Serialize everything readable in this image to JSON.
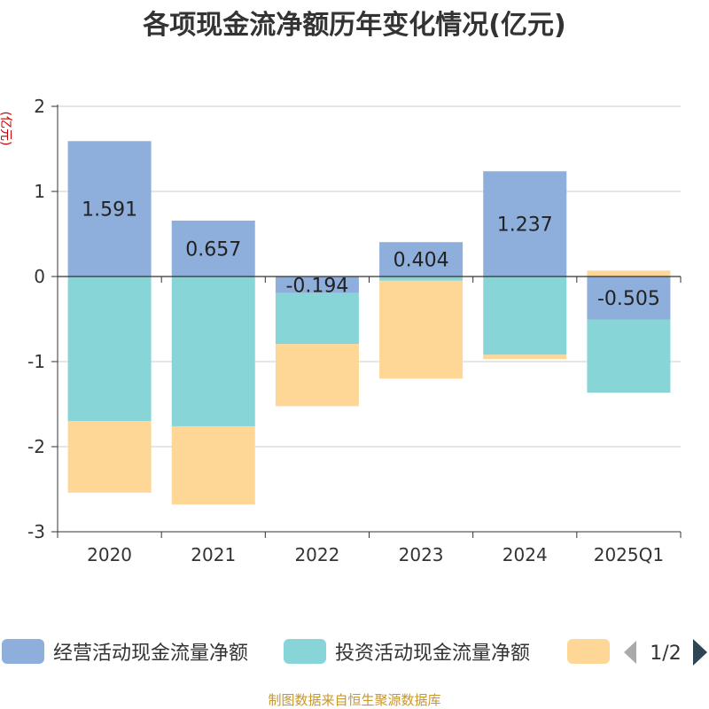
{
  "chart_data": {
    "type": "bar",
    "stacked": true,
    "title": "各项现金流净额历年变化情况(亿元)",
    "ylabel": "(亿元)",
    "categories": [
      "2020",
      "2021",
      "2022",
      "2023",
      "2024",
      "2025Q1"
    ],
    "ylim": [
      -3,
      2
    ],
    "yticks": [
      2,
      1,
      0,
      -1,
      -2,
      -3
    ],
    "grid": true,
    "legend_position": "bottom",
    "series": [
      {
        "name": "经营活动现金流量净额",
        "color": "#8eaedb",
        "values": [
          1.591,
          0.657,
          -0.194,
          0.404,
          1.237,
          -0.505
        ]
      },
      {
        "name": "投资活动现金流量净额",
        "color": "#88d5d8",
        "values": [
          -1.7,
          -1.76,
          -0.6,
          -0.05,
          -0.92,
          -0.86
        ]
      },
      {
        "name": "",
        "color": "#fed797",
        "values": [
          -0.84,
          -0.92,
          -0.73,
          -1.15,
          -0.05,
          0.07
        ]
      }
    ],
    "data_labels": [
      "1.591",
      "0.657",
      "-0.194",
      "0.404",
      "1.237",
      "-0.505"
    ]
  },
  "legend": {
    "pager": "1/2"
  },
  "source": "制图数据来自恒生聚源数据库"
}
